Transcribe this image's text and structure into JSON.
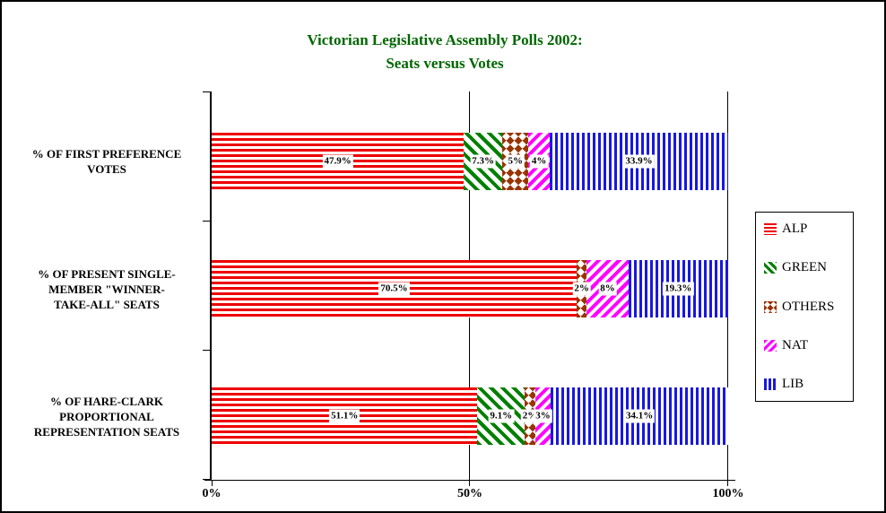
{
  "title": {
    "line1": "Victorian Legislative Assembly Polls 2002:",
    "line2": "Seats versus Votes",
    "color": "#006600"
  },
  "chart_data": {
    "type": "bar",
    "orientation": "horizontal",
    "stacked": true,
    "title": "Victorian Legislative Assembly Polls 2002: Seats versus Votes",
    "categories": [
      "% OF FIRST PREFERENCE VOTES",
      "% OF PRESENT SINGLE-MEMBER \"WINNER-TAKE-ALL\" SEATS",
      "% OF HARE-CLARK PROPORTIONAL REPRESENTATION SEATS"
    ],
    "category_lines": [
      [
        "% OF FIRST PREFERENCE",
        "VOTES"
      ],
      [
        "% OF PRESENT SINGLE-",
        "MEMBER \"WINNER-",
        "TAKE-ALL\" SEATS"
      ],
      [
        "% OF HARE-CLARK",
        "PROPORTIONAL",
        "REPRESENTATION SEATS"
      ]
    ],
    "series": [
      {
        "name": "ALP",
        "pattern": "horizontal-stripes",
        "color": "#EE0000",
        "values": [
          47.9,
          70.5,
          51.1
        ],
        "labels": [
          "47.9%",
          "70.5%",
          "51.1%"
        ]
      },
      {
        "name": "GREEN",
        "pattern": "diagonal-down-stripes",
        "color": "#008000",
        "values": [
          7.3,
          0,
          9.1
        ],
        "labels": [
          "7.3%",
          "",
          "9.1%"
        ]
      },
      {
        "name": "OTHERS",
        "pattern": "diamonds",
        "color": "#993300",
        "values": [
          5,
          2,
          2
        ],
        "labels": [
          "5%",
          "2%",
          "2%"
        ]
      },
      {
        "name": "NAT",
        "pattern": "diagonal-up-stripes",
        "color": "#FF00FF",
        "values": [
          4,
          8,
          3
        ],
        "labels": [
          "4%",
          "8%",
          "3%"
        ]
      },
      {
        "name": "LIB",
        "pattern": "vertical-stripes",
        "color": "#1818DF",
        "values": [
          33.9,
          19.3,
          34.1
        ],
        "labels": [
          "33.9%",
          "19.3%",
          "34.1%"
        ]
      }
    ],
    "xlim": [
      0,
      100
    ],
    "x_ticks": [
      "0%",
      "50%",
      "100%"
    ],
    "gridlines": {
      "vertical_at_percent": [
        50,
        100
      ]
    },
    "legend_position": "right",
    "legend_items": [
      "ALP",
      "GREEN",
      "OTHERS",
      "NAT",
      "LIB"
    ],
    "colors": {
      "axis": "#000000",
      "label_background": "#FFFFFF",
      "title": "#006600"
    }
  }
}
